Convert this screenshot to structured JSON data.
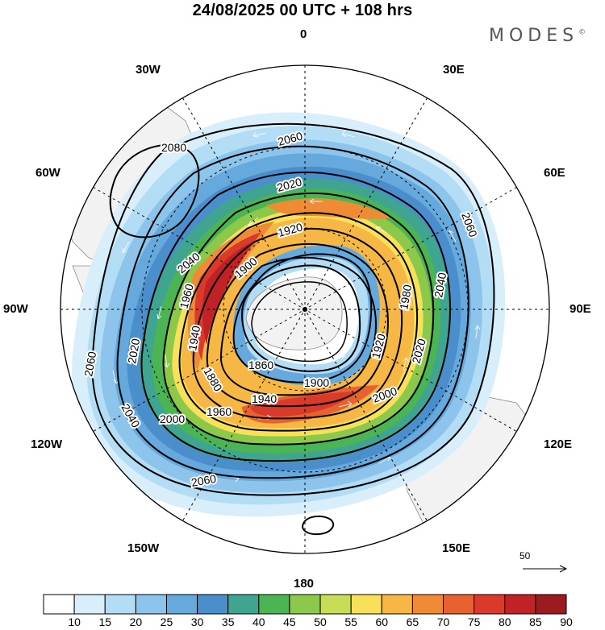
{
  "header": {
    "title": "24/08/2025  00 UTC  + 108 hrs",
    "brand": "MODES",
    "brand_mark": "©"
  },
  "longitude_labels": [
    "0",
    "30E",
    "60E",
    "90E",
    "120E",
    "150E",
    "180",
    "150W",
    "120W",
    "90W",
    "60W",
    "30W"
  ],
  "contour_labels": [
    "2080",
    "2060",
    "2060",
    "2060",
    "2060",
    "2040",
    "2040",
    "2040",
    "2020",
    "2020",
    "2020",
    "2000",
    "2000",
    "1980",
    "1960",
    "1960",
    "1940",
    "1940",
    "1920",
    "1920",
    "1900",
    "1900",
    "1880",
    "1860"
  ],
  "reference_vector": {
    "label": "50"
  },
  "colorbar": {
    "ticks": [
      "10",
      "15",
      "20",
      "25",
      "30",
      "35",
      "40",
      "45",
      "50",
      "55",
      "60",
      "65",
      "70",
      "75",
      "80",
      "85",
      "90"
    ],
    "colors": [
      "#ffffff",
      "#d8eefb",
      "#b3dcf5",
      "#8dc4ec",
      "#66a9dd",
      "#4a8ecb",
      "#3fa590",
      "#4cb553",
      "#8cc94a",
      "#c6dd55",
      "#f8e05a",
      "#f6b744",
      "#ef8a35",
      "#e7622f",
      "#d93a2a",
      "#c02226",
      "#9b1b1e"
    ]
  },
  "map": {
    "land_color": "#f2f2f2",
    "coast_color": "#8a8a8a"
  }
}
